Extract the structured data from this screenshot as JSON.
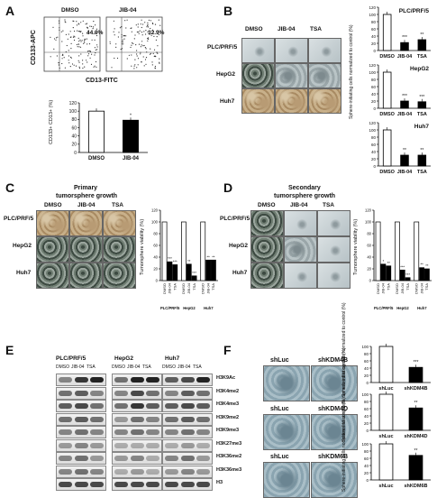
{
  "panels": {
    "A": "A",
    "B": "B",
    "C": "C",
    "D": "D",
    "E": "E",
    "F": "F"
  },
  "A": {
    "flow": {
      "left_label": "DMSO",
      "right_label": "JIB-04",
      "left_pct": "44.9%",
      "right_pct": "32.9%",
      "ylabel": "CD133-APC",
      "xlabel": "CD13-FITC"
    },
    "bar": {
      "ylabel": "CD133+ CD13+ (%)",
      "sig": "*"
    }
  },
  "B": {
    "cols": [
      "DMSO",
      "JIB-04",
      "TSA"
    ],
    "rows": [
      "PLC/PRF/5",
      "HepG2",
      "Huh7"
    ],
    "ylabel": "Sphere-initiating cells normalized to control (%)"
  },
  "C": {
    "title1": "Primary",
    "title2": "tumorsphere growth",
    "cols": [
      "DMSO",
      "JIB-04",
      "TSA"
    ],
    "rows": [
      "PLC/PRF/5",
      "HepG2",
      "Huh7"
    ],
    "ylabel": "Tumorsphere viability (%)"
  },
  "D": {
    "title1": "Secondary",
    "title2": "tumorsphere growth",
    "cols": [
      "DMSO",
      "JIB-04",
      "TSA"
    ],
    "rows": [
      "PLC/PRF/5",
      "HepG2",
      "Huh7"
    ],
    "ylabel": "Tumorsphere viability (%)"
  },
  "E": {
    "groups": [
      "PLC/PRF/5",
      "HepG2",
      "Huh7"
    ],
    "lanes": [
      "DMSO",
      "JIB-04",
      "TSA"
    ],
    "marks": [
      "H3K9Ac",
      "H3K4me2",
      "H3K4me3",
      "H3K9me2",
      "H3K9me3",
      "H3K27me3",
      "H3K36me2",
      "H3K36me3",
      "H3"
    ]
  },
  "F": {
    "rows": [
      {
        "left": "shLuc",
        "right": "shKDM4B"
      },
      {
        "left": "shLuc",
        "right": "shKDM4D"
      },
      {
        "left": "shLuc",
        "right": "shKDM6B"
      }
    ],
    "ylabel": "Sphere-initiating cells normalized to control (%)"
  },
  "chart_data": [
    {
      "type": "bar",
      "panel": "A",
      "categories": [
        "DMSO",
        "JIB-04"
      ],
      "values": [
        100,
        78
      ],
      "ylabel": "CD133+ CD13+ (%)",
      "ylim": [
        0,
        120
      ],
      "yticks": [
        0,
        20,
        40,
        60,
        80,
        100,
        120
      ],
      "sig": [
        "",
        "*"
      ]
    },
    {
      "type": "bar",
      "panel": "B",
      "title": "PLC/PRF/5",
      "categories": [
        "DMSO",
        "JIB-04",
        "TSA"
      ],
      "values": [
        100,
        22,
        30
      ],
      "ylim": [
        0,
        120
      ],
      "yticks": [
        0,
        20,
        40,
        60,
        80,
        100,
        120
      ],
      "sig": [
        "",
        "***",
        "**"
      ]
    },
    {
      "type": "bar",
      "panel": "B",
      "title": "HepG2",
      "categories": [
        "DMSO",
        "JIB-04",
        "TSA"
      ],
      "values": [
        100,
        20,
        18
      ],
      "ylim": [
        0,
        120
      ],
      "yticks": [
        0,
        20,
        40,
        60,
        80,
        100,
        120
      ],
      "sig": [
        "",
        "***",
        "***"
      ]
    },
    {
      "type": "bar",
      "panel": "B",
      "title": "Huh7",
      "categories": [
        "DMSO",
        "JIB-04",
        "TSA"
      ],
      "values": [
        100,
        30,
        30
      ],
      "ylim": [
        0,
        120
      ],
      "yticks": [
        0,
        20,
        40,
        60,
        80,
        100,
        120
      ],
      "sig": [
        "",
        "**",
        "**"
      ]
    },
    {
      "type": "bar",
      "panel": "C",
      "groups": [
        "PLC/PRF/5",
        "HepG2",
        "Huh7"
      ],
      "categories": [
        "DMSO",
        "JIB-04",
        "TSA"
      ],
      "values": [
        [
          100,
          32,
          27
        ],
        [
          100,
          28,
          8
        ],
        [
          100,
          35,
          35
        ]
      ],
      "ylim": [
        0,
        120
      ],
      "yticks": [
        0,
        20,
        40,
        60,
        80,
        100,
        120
      ],
      "sig": [
        [
          "",
          "***",
          "***"
        ],
        [
          "",
          "**",
          "***"
        ],
        [
          "",
          "**",
          "**"
        ]
      ]
    },
    {
      "type": "bar",
      "panel": "D",
      "groups": [
        "PLC/PRF/5",
        "HepG2",
        "Huh7"
      ],
      "categories": [
        "DMSO",
        "JIB-04",
        "TSA"
      ],
      "values": [
        [
          100,
          28,
          25
        ],
        [
          100,
          18,
          5
        ],
        [
          100,
          22,
          20
        ]
      ],
      "ylim": [
        0,
        120
      ],
      "yticks": [
        0,
        20,
        40,
        60,
        80,
        100,
        120
      ],
      "sig": [
        [
          "",
          "*",
          "**"
        ],
        [
          "",
          "***",
          "***"
        ],
        [
          "",
          "**",
          "**"
        ]
      ]
    },
    {
      "type": "bar",
      "panel": "F",
      "categories": [
        "shLuc",
        "shKDM4B"
      ],
      "values": [
        100,
        42
      ],
      "ylim": [
        0,
        100
      ],
      "yticks": [
        0,
        20,
        40,
        60,
        80,
        100
      ],
      "sig": [
        "",
        "***"
      ]
    },
    {
      "type": "bar",
      "panel": "F",
      "categories": [
        "shLuc",
        "shKDM4D"
      ],
      "values": [
        100,
        62
      ],
      "ylim": [
        0,
        100
      ],
      "yticks": [
        0,
        20,
        40,
        60,
        80,
        100
      ],
      "sig": [
        "",
        "**"
      ]
    },
    {
      "type": "bar",
      "panel": "F",
      "categories": [
        "shLuc",
        "shKDM6B"
      ],
      "values": [
        100,
        68
      ],
      "ylim": [
        0,
        100
      ],
      "yticks": [
        0,
        20,
        40,
        60,
        80,
        100
      ],
      "sig": [
        "",
        "**"
      ]
    }
  ]
}
